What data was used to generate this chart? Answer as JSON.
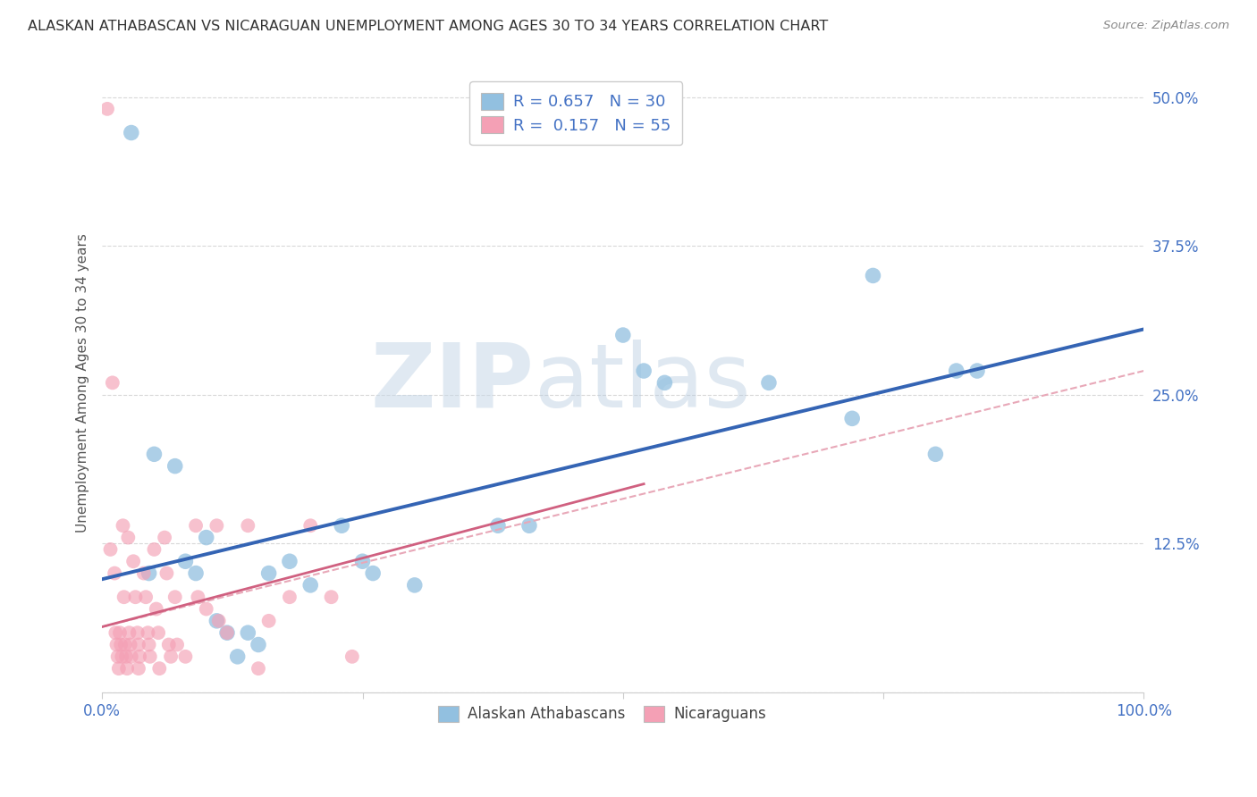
{
  "title": "ALASKAN ATHABASCAN VS NICARAGUAN UNEMPLOYMENT AMONG AGES 30 TO 34 YEARS CORRELATION CHART",
  "source": "Source: ZipAtlas.com",
  "ylabel": "Unemployment Among Ages 30 to 34 years",
  "xlim": [
    0.0,
    1.0
  ],
  "ylim": [
    0.0,
    0.52
  ],
  "xticks": [
    0.0,
    0.25,
    0.5,
    0.75,
    1.0
  ],
  "xtick_labels": [
    "0.0%",
    "",
    "",
    "",
    "100.0%"
  ],
  "yticks": [
    0.0,
    0.125,
    0.25,
    0.375,
    0.5
  ],
  "ytick_labels": [
    "",
    "12.5%",
    "25.0%",
    "37.5%",
    "50.0%"
  ],
  "background_color": "#ffffff",
  "grid_color": "#d8d8d8",
  "title_color": "#333333",
  "axis_label_color": "#555555",
  "tick_color_right": "#4472c4",
  "watermark_zip": "ZIP",
  "watermark_atlas": "atlas",
  "blue_color": "#92c0e0",
  "pink_color": "#f4a0b5",
  "blue_line_color": "#3464b4",
  "pink_line_color": "#d06080",
  "pink_dash_color": "#e8a8b8",
  "blue_scatter": [
    [
      0.028,
      0.47
    ],
    [
      0.045,
      0.1
    ],
    [
      0.05,
      0.2
    ],
    [
      0.07,
      0.19
    ],
    [
      0.08,
      0.11
    ],
    [
      0.09,
      0.1
    ],
    [
      0.1,
      0.13
    ],
    [
      0.11,
      0.06
    ],
    [
      0.12,
      0.05
    ],
    [
      0.13,
      0.03
    ],
    [
      0.14,
      0.05
    ],
    [
      0.15,
      0.04
    ],
    [
      0.16,
      0.1
    ],
    [
      0.18,
      0.11
    ],
    [
      0.2,
      0.09
    ],
    [
      0.23,
      0.14
    ],
    [
      0.25,
      0.11
    ],
    [
      0.26,
      0.1
    ],
    [
      0.3,
      0.09
    ],
    [
      0.38,
      0.14
    ],
    [
      0.41,
      0.14
    ],
    [
      0.5,
      0.3
    ],
    [
      0.52,
      0.27
    ],
    [
      0.54,
      0.26
    ],
    [
      0.64,
      0.26
    ],
    [
      0.72,
      0.23
    ],
    [
      0.74,
      0.35
    ],
    [
      0.8,
      0.2
    ],
    [
      0.82,
      0.27
    ],
    [
      0.84,
      0.27
    ]
  ],
  "pink_scatter": [
    [
      0.005,
      0.49
    ],
    [
      0.008,
      0.12
    ],
    [
      0.01,
      0.26
    ],
    [
      0.012,
      0.1
    ],
    [
      0.013,
      0.05
    ],
    [
      0.014,
      0.04
    ],
    [
      0.015,
      0.03
    ],
    [
      0.016,
      0.02
    ],
    [
      0.017,
      0.05
    ],
    [
      0.018,
      0.04
    ],
    [
      0.019,
      0.03
    ],
    [
      0.02,
      0.14
    ],
    [
      0.021,
      0.08
    ],
    [
      0.022,
      0.04
    ],
    [
      0.023,
      0.03
    ],
    [
      0.024,
      0.02
    ],
    [
      0.025,
      0.13
    ],
    [
      0.026,
      0.05
    ],
    [
      0.027,
      0.04
    ],
    [
      0.028,
      0.03
    ],
    [
      0.03,
      0.11
    ],
    [
      0.032,
      0.08
    ],
    [
      0.034,
      0.05
    ],
    [
      0.035,
      0.04
    ],
    [
      0.036,
      0.03
    ],
    [
      0.04,
      0.1
    ],
    [
      0.042,
      0.08
    ],
    [
      0.044,
      0.05
    ],
    [
      0.045,
      0.04
    ],
    [
      0.046,
      0.03
    ],
    [
      0.05,
      0.12
    ],
    [
      0.052,
      0.07
    ],
    [
      0.054,
      0.05
    ],
    [
      0.06,
      0.13
    ],
    [
      0.062,
      0.1
    ],
    [
      0.064,
      0.04
    ],
    [
      0.066,
      0.03
    ],
    [
      0.07,
      0.08
    ],
    [
      0.072,
      0.04
    ],
    [
      0.08,
      0.03
    ],
    [
      0.09,
      0.14
    ],
    [
      0.092,
      0.08
    ],
    [
      0.1,
      0.07
    ],
    [
      0.11,
      0.14
    ],
    [
      0.112,
      0.06
    ],
    [
      0.12,
      0.05
    ],
    [
      0.14,
      0.14
    ],
    [
      0.15,
      0.02
    ],
    [
      0.16,
      0.06
    ],
    [
      0.18,
      0.08
    ],
    [
      0.2,
      0.14
    ],
    [
      0.22,
      0.08
    ],
    [
      0.24,
      0.03
    ],
    [
      0.035,
      0.02
    ],
    [
      0.055,
      0.02
    ]
  ]
}
